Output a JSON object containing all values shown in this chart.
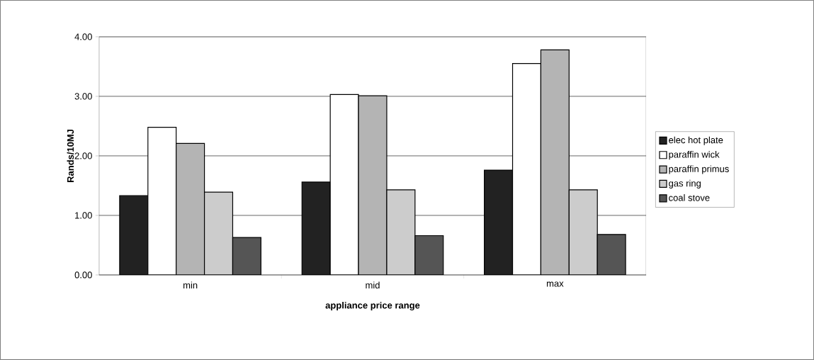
{
  "chart_data": {
    "type": "bar",
    "xlabel": "appliance price range",
    "ylabel": "Rands/10MJ",
    "categories": [
      "min",
      "mid",
      "max"
    ],
    "series": [
      {
        "name": "elec hot plate",
        "color": "#222222",
        "values": [
          1.33,
          1.56,
          1.76
        ]
      },
      {
        "name": "paraffin wick",
        "color": "#ffffff",
        "values": [
          2.48,
          3.03,
          3.55
        ]
      },
      {
        "name": "paraffin primus",
        "color": "#b4b4b4",
        "values": [
          2.21,
          3.01,
          3.78
        ]
      },
      {
        "name": "gas ring",
        "color": "#cccccc",
        "values": [
          1.39,
          1.43,
          1.43
        ]
      },
      {
        "name": "coal stove",
        "color": "#555555",
        "values": [
          0.63,
          0.66,
          0.68
        ]
      }
    ],
    "ylim": [
      0,
      4
    ],
    "yticks": [
      {
        "value": 0,
        "label": "0.00"
      },
      {
        "value": 1,
        "label": "1.00"
      },
      {
        "value": 2,
        "label": "2.00"
      },
      {
        "value": 3,
        "label": "3.00"
      },
      {
        "value": 4,
        "label": "4.00"
      }
    ],
    "grid": "y",
    "legend": "right"
  }
}
